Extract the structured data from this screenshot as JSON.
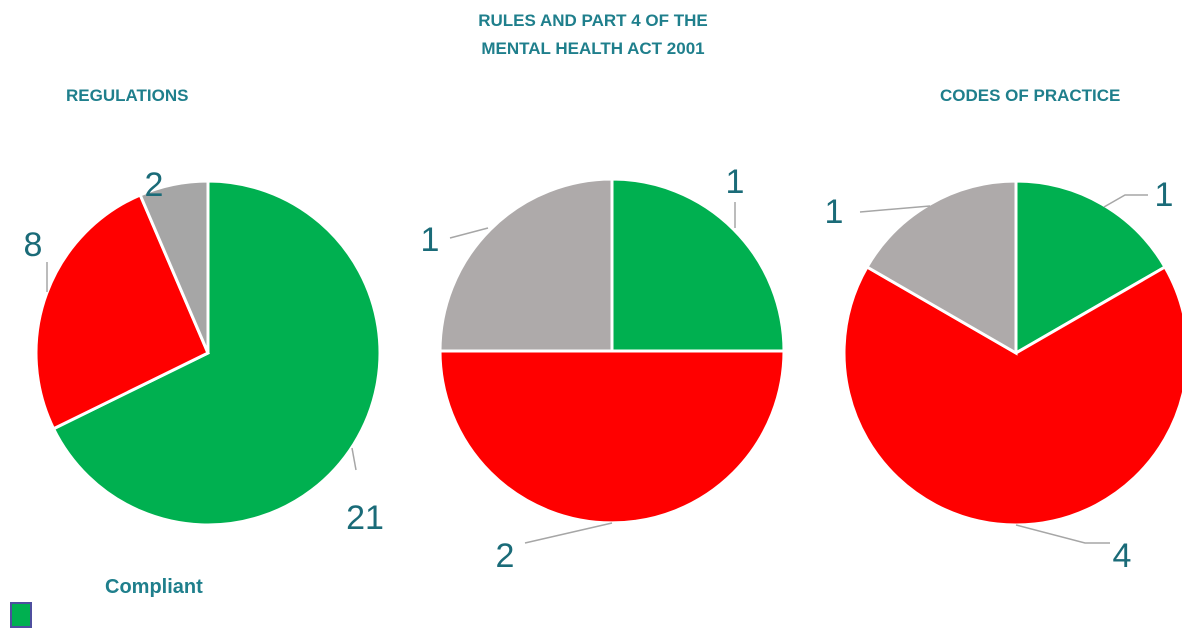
{
  "titles": {
    "regulations": "REGULATIONS",
    "rules": "RULES AND PART 4 OF THE MENTAL HEALTH ACT 2001",
    "codes": "CODES OF PRACTICE"
  },
  "legend": {
    "label": "Compliant",
    "color": "#00b050"
  },
  "colors": {
    "green": "#00b050",
    "red": "#ff0000",
    "gray": "#a6a6a6",
    "gray2": "#aeaaaa"
  },
  "chart_data": [
    {
      "type": "pie",
      "title": "REGULATIONS",
      "values": [
        21,
        8,
        2
      ],
      "colors": [
        "#00b050",
        "#ff0000",
        "#a6a6a6"
      ],
      "data_labels": [
        "21",
        "8",
        "2"
      ]
    },
    {
      "type": "pie",
      "title": "RULES AND PART 4 OF THE MENTAL HEALTH ACT 2001",
      "values": [
        1,
        2,
        1
      ],
      "colors": [
        "#00b050",
        "#ff0000",
        "#aeaaaa"
      ],
      "data_labels": [
        "1",
        "2",
        "1"
      ]
    },
    {
      "type": "pie",
      "title": "CODES OF PRACTICE",
      "values": [
        1,
        4,
        1
      ],
      "colors": [
        "#00b050",
        "#ff0000",
        "#aeaaaa"
      ],
      "data_labels": [
        "1",
        "4",
        "1"
      ]
    }
  ]
}
